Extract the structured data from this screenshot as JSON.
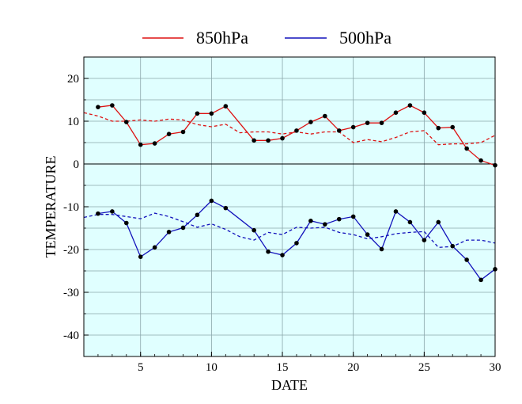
{
  "chart_data": {
    "type": "line",
    "title": "",
    "xlabel": "DATE",
    "ylabel": "TEMPERATURE",
    "xlim": [
      1,
      30
    ],
    "ylim": [
      -45,
      25
    ],
    "xticks": [
      5,
      10,
      15,
      20,
      25,
      30
    ],
    "yticks": [
      20,
      10,
      0,
      -10,
      -20,
      -30,
      -40
    ],
    "grid": true,
    "background": "#e0ffff",
    "legend_position": "top-center",
    "series": [
      {
        "name": "850hPa",
        "color": "#dd1111",
        "style": "solid-markers",
        "x": [
          2,
          3,
          4,
          5,
          6,
          7,
          8,
          9,
          10,
          11,
          13,
          14,
          15,
          16,
          17,
          18,
          19,
          20,
          21,
          22,
          23,
          24,
          25,
          26,
          27,
          28,
          29,
          30
        ],
        "values": [
          13.3,
          13.7,
          9.8,
          4.5,
          4.8,
          7.0,
          7.5,
          11.8,
          11.8,
          13.5,
          5.5,
          5.5,
          6.0,
          7.8,
          9.8,
          11.2,
          7.8,
          8.6,
          9.6,
          9.6,
          12.0,
          13.7,
          12.0,
          8.4,
          8.6,
          3.6,
          0.8,
          -0.3
        ]
      },
      {
        "name": "500hPa",
        "color": "#1111bb",
        "style": "solid-markers",
        "x": [
          2,
          3,
          4,
          5,
          6,
          7,
          8,
          9,
          10,
          11,
          13,
          14,
          15,
          16,
          17,
          18,
          19,
          20,
          21,
          22,
          23,
          24,
          25,
          26,
          27,
          28,
          29,
          30
        ],
        "values": [
          -11.6,
          -11.1,
          -13.8,
          -21.7,
          -19.5,
          -15.9,
          -14.9,
          -11.9,
          -8.6,
          -10.3,
          -15.5,
          -20.5,
          -21.3,
          -18.5,
          -13.3,
          -14.1,
          -12.9,
          -12.3,
          -16.5,
          -19.9,
          -11.1,
          -13.6,
          -17.8,
          -13.6,
          -19.2,
          -22.4,
          -27.1,
          -24.6
        ]
      },
      {
        "name": "",
        "color": "#dd1111",
        "style": "dashed",
        "x": [
          1,
          2,
          3,
          4,
          5,
          6,
          7,
          8,
          9,
          10,
          11,
          12,
          13,
          14,
          15,
          16,
          17,
          18,
          19,
          20,
          21,
          22,
          23,
          24,
          25,
          26,
          27,
          28,
          29,
          30
        ],
        "values": [
          12.0,
          11.2,
          10.0,
          10.0,
          10.3,
          10.0,
          10.5,
          10.3,
          9.2,
          8.7,
          9.3,
          7.3,
          7.5,
          7.5,
          7.0,
          7.5,
          7.0,
          7.5,
          7.5,
          5.0,
          5.7,
          5.2,
          6.2,
          7.5,
          7.8,
          4.5,
          4.7,
          4.7,
          5.0,
          6.7
        ]
      },
      {
        "name": "",
        "color": "#1111bb",
        "style": "dashed",
        "x": [
          1,
          2,
          3,
          4,
          5,
          6,
          7,
          8,
          9,
          10,
          11,
          12,
          13,
          14,
          15,
          16,
          17,
          18,
          19,
          20,
          21,
          22,
          23,
          24,
          25,
          26,
          27,
          28,
          29,
          30
        ],
        "values": [
          -12.5,
          -11.8,
          -11.8,
          -12.3,
          -12.8,
          -11.5,
          -12.3,
          -13.5,
          -14.8,
          -14.0,
          -15.3,
          -17.0,
          -17.8,
          -16.0,
          -16.5,
          -14.8,
          -15.0,
          -14.8,
          -16.0,
          -16.5,
          -17.5,
          -17.0,
          -16.3,
          -16.0,
          -15.8,
          -19.5,
          -19.3,
          -17.8,
          -17.8,
          -18.5
        ]
      }
    ]
  }
}
